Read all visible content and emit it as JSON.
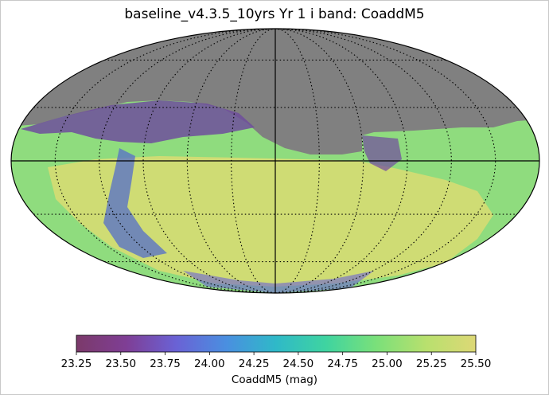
{
  "chart_data": {
    "type": "heatmap",
    "projection": "mollweide",
    "title": "baseline_v4.3.5_10yrs Yr 1 i band: CoaddM5",
    "colorbar": {
      "label": "CoaddM5 (mag)",
      "range": [
        23.25,
        25.5
      ],
      "ticks": [
        23.25,
        23.5,
        23.75,
        24.0,
        24.25,
        24.5,
        24.75,
        25.0,
        25.25,
        25.5
      ],
      "tick_labels": [
        "23.25",
        "23.50",
        "23.75",
        "24.00",
        "24.25",
        "24.50",
        "24.75",
        "25.00",
        "25.25",
        "25.50"
      ],
      "colormap": [
        "#7b3a6a",
        "#7f3e95",
        "#6a62d5",
        "#4a8fe0",
        "#2fb9c8",
        "#3fd4a0",
        "#7ae07a",
        "#b8e06e",
        "#ddd876"
      ]
    },
    "unobserved_color": "#808080",
    "graticule": {
      "meridian_step_deg": 30,
      "parallel_step_deg": 30,
      "style": "dotted"
    },
    "grid": true
  }
}
